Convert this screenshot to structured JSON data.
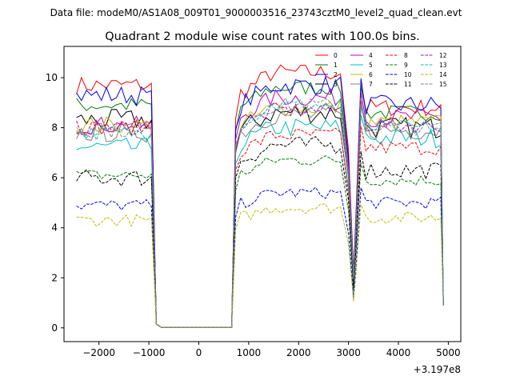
{
  "chart_data": {
    "type": "line",
    "suptitle": "Data file: modeM0/AS1A08_009T01_9000003516_23743cztM0_level2_quad_clean.evt",
    "title": "Quadrant 2 module wise count rates with 100.0s bins.",
    "xlabel": "",
    "ylabel": "",
    "x_offset_label": "+3.197e8",
    "xlim": [
      -2700,
      5250
    ],
    "ylim": [
      -0.55,
      11.25
    ],
    "xticks": [
      -2000,
      -1000,
      0,
      1000,
      2000,
      3000,
      4000,
      5000
    ],
    "yticks": [
      0,
      2,
      4,
      6,
      8,
      10
    ],
    "xtick_labels": [
      "−2000",
      "−1000",
      "0",
      "1000",
      "2000",
      "3000",
      "4000",
      "5000"
    ],
    "ytick_labels": [
      "0",
      "2",
      "4",
      "6",
      "8",
      "10"
    ],
    "legend_position": "top-right",
    "series": [
      {
        "name": "0",
        "color": "#ff0000",
        "dash": false,
        "level_a": 9.7,
        "level_b": 10.2,
        "level_c": 8.8,
        "noise": 0.18
      },
      {
        "name": "1",
        "color": "#008000",
        "dash": false,
        "level_a": 8.9,
        "level_b": 9.6,
        "level_c": 8.6,
        "noise": 0.16
      },
      {
        "name": "2",
        "color": "#0000ff",
        "dash": false,
        "level_a": 9.3,
        "level_b": 9.7,
        "level_c": 8.9,
        "noise": 0.2
      },
      {
        "name": "3",
        "color": "#000000",
        "dash": false,
        "level_a": 8.3,
        "level_b": 8.6,
        "level_c": 8.0,
        "noise": 0.22
      },
      {
        "name": "4",
        "color": "#bf00bf",
        "dash": false,
        "level_a": 8.1,
        "level_b": 9.2,
        "level_c": 8.4,
        "noise": 0.18
      },
      {
        "name": "5",
        "color": "#00bfbf",
        "dash": false,
        "level_a": 7.2,
        "level_b": 8.0,
        "level_c": 7.6,
        "noise": 0.2
      },
      {
        "name": "6",
        "color": "#bfbf00",
        "dash": false,
        "level_a": 8.1,
        "level_b": 8.8,
        "level_c": 8.2,
        "noise": 0.18
      },
      {
        "name": "7",
        "color": "#808080",
        "dash": false,
        "level_a": 7.8,
        "level_b": 8.5,
        "level_c": 7.9,
        "noise": 0.2
      },
      {
        "name": "8",
        "color": "#ff0000",
        "dash": true,
        "level_a": 8.0,
        "level_b": 7.7,
        "level_c": 7.2,
        "noise": 0.15
      },
      {
        "name": "9",
        "color": "#008000",
        "dash": true,
        "level_a": 6.1,
        "level_b": 6.7,
        "level_c": 5.9,
        "noise": 0.12
      },
      {
        "name": "10",
        "color": "#0000ff",
        "dash": true,
        "level_a": 4.9,
        "level_b": 5.4,
        "level_c": 5.0,
        "noise": 0.12
      },
      {
        "name": "11",
        "color": "#000000",
        "dash": true,
        "level_a": 6.0,
        "level_b": 7.3,
        "level_c": 6.3,
        "noise": 0.18
      },
      {
        "name": "12",
        "color": "#bf00bf",
        "dash": true,
        "level_a": 8.0,
        "level_b": 8.7,
        "level_c": 8.1,
        "noise": 0.15
      },
      {
        "name": "13",
        "color": "#00bfbf",
        "dash": true,
        "level_a": 7.8,
        "level_b": 8.9,
        "level_c": 8.0,
        "noise": 0.15
      },
      {
        "name": "14",
        "color": "#bfbf00",
        "dash": true,
        "level_a": 4.3,
        "level_b": 4.8,
        "level_c": 4.4,
        "noise": 0.12
      },
      {
        "name": "15",
        "color": "#808080",
        "dash": true,
        "level_a": 7.9,
        "level_b": 8.9,
        "level_c": 8.0,
        "noise": 0.15
      }
    ],
    "segments": {
      "a_start": -2450,
      "a_end": -950,
      "gap_end": 680,
      "b_end": 3000,
      "dip_x": 3100,
      "peak_x": 3250,
      "c_end": 4850,
      "end_x": 4900
    }
  }
}
